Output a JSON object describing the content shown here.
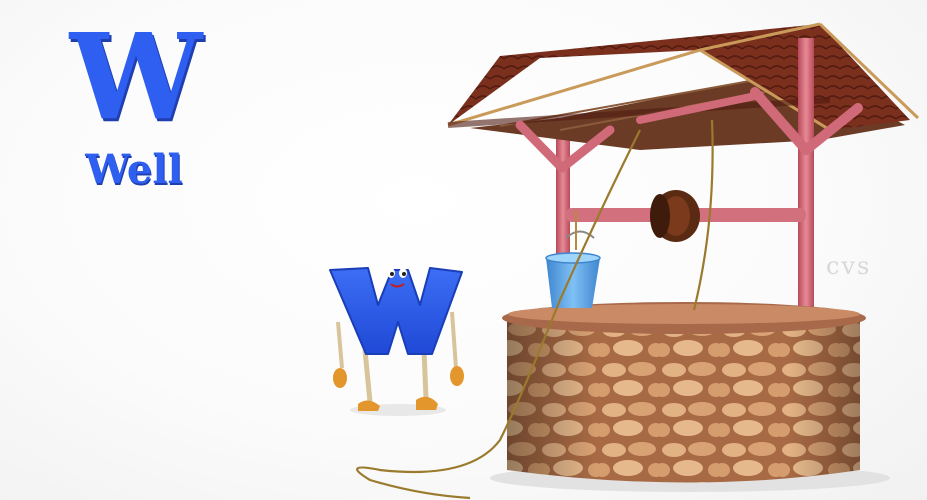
{
  "lesson": {
    "letter": "W",
    "word": "Well"
  },
  "watermark": "cvs",
  "colors": {
    "letter_blue": "#2f5ff0",
    "roof_brown": "#7a2e1c",
    "post_pink": "#d86a78",
    "stone": "#d9a77c",
    "bucket_blue": "#5aa3e6",
    "rope": "#9a7a2c"
  },
  "icons": {
    "character": "letter-w-character-icon",
    "well": "wishing-well-icon",
    "bucket": "bucket-icon"
  }
}
